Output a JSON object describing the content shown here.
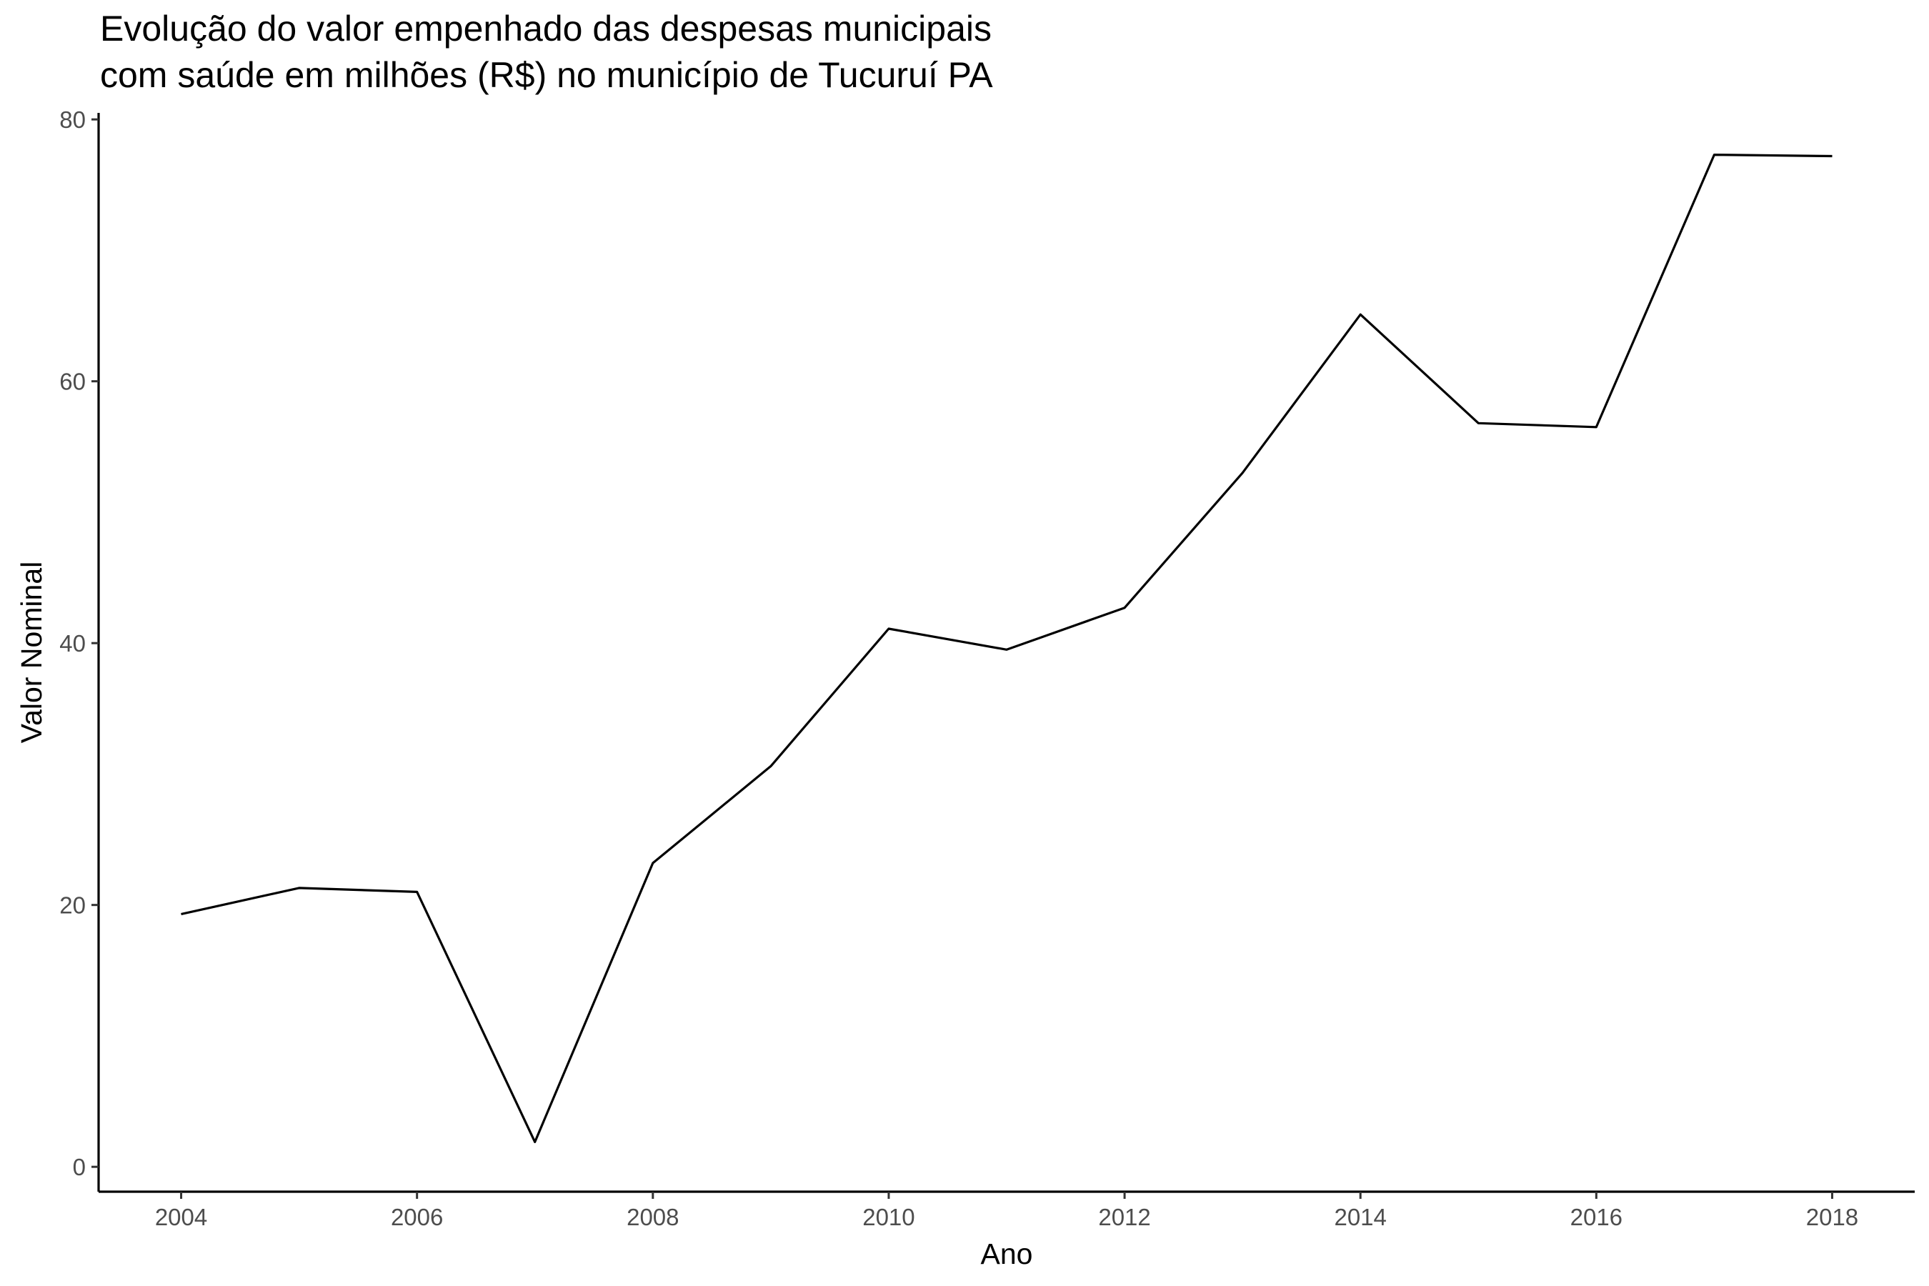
{
  "chart_data": {
    "type": "line",
    "title_lines": [
      "Evolução do valor empenhado das despesas municipais",
      "com saúde em milhões (R$) no município de Tucuruí PA"
    ],
    "xlabel": "Ano",
    "ylabel": "Valor Nominal",
    "x": [
      2004,
      2005,
      2006,
      2007,
      2008,
      2009,
      2010,
      2011,
      2012,
      2013,
      2014,
      2015,
      2016,
      2017,
      2018
    ],
    "y": [
      19.3,
      21.3,
      21.0,
      1.9,
      23.2,
      30.6,
      41.1,
      39.5,
      42.7,
      53.0,
      65.1,
      56.8,
      56.5,
      77.3,
      77.2
    ],
    "xlim": [
      2003.3,
      2018.7
    ],
    "ylim": [
      -1.9,
      80.5
    ],
    "x_ticks": [
      2004,
      2006,
      2008,
      2010,
      2012,
      2014,
      2016,
      2018
    ],
    "y_ticks": [
      0,
      20,
      40,
      60,
      80
    ],
    "grid": false,
    "line_color": "#000000"
  }
}
